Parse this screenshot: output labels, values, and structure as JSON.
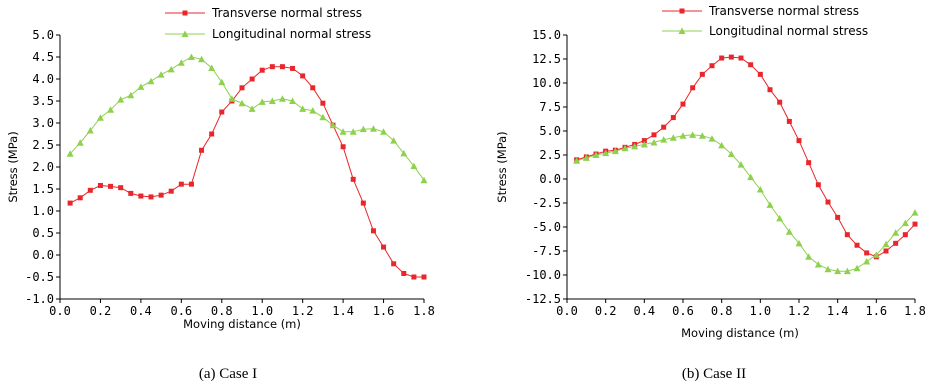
{
  "colors": {
    "transverse": "#e8262b",
    "longitudinal": "#8fd14f",
    "axis": "#000000"
  },
  "chart_data": [
    {
      "type": "line",
      "caption": "(a) Case I",
      "xlabel": "Moving distance (m)",
      "ylabel": "Stress (MPa)",
      "xlim": [
        0.0,
        1.8
      ],
      "ylim": [
        -1.0,
        5.0
      ],
      "xticks": [
        "0.0",
        "0.2",
        "0.4",
        "0.6",
        "0.8",
        "1.0",
        "1.2",
        "1.4",
        "1.6",
        "1.8"
      ],
      "yticks": [
        "-1.0",
        "-0.5",
        "0.0",
        "0.5",
        "1.0",
        "1.5",
        "2.0",
        "2.5",
        "3.0",
        "3.5",
        "4.0",
        "4.5",
        "5.0"
      ],
      "legend": "top",
      "series": [
        {
          "name": "Transverse normal stress",
          "marker": "square",
          "x": [
            0.05,
            0.1,
            0.15,
            0.2,
            0.25,
            0.3,
            0.35,
            0.4,
            0.45,
            0.5,
            0.55,
            0.6,
            0.65,
            0.7,
            0.75,
            0.8,
            0.85,
            0.9,
            0.95,
            1.0,
            1.05,
            1.1,
            1.15,
            1.2,
            1.25,
            1.3,
            1.35,
            1.4,
            1.45,
            1.5,
            1.55,
            1.6,
            1.65,
            1.7,
            1.75,
            1.8
          ],
          "values": [
            1.18,
            1.3,
            1.47,
            1.58,
            1.56,
            1.53,
            1.4,
            1.34,
            1.32,
            1.36,
            1.45,
            1.61,
            1.61,
            2.38,
            2.75,
            3.25,
            3.5,
            3.8,
            4.0,
            4.2,
            4.28,
            4.28,
            4.24,
            4.07,
            3.8,
            3.45,
            2.95,
            2.46,
            1.72,
            1.18,
            0.55,
            0.18,
            -0.2,
            -0.42,
            -0.5,
            -0.5
          ]
        },
        {
          "name": "Longitudinal normal stress",
          "marker": "triangle",
          "x": [
            0.05,
            0.1,
            0.15,
            0.2,
            0.25,
            0.3,
            0.35,
            0.4,
            0.45,
            0.5,
            0.55,
            0.6,
            0.65,
            0.7,
            0.75,
            0.8,
            0.85,
            0.9,
            0.95,
            1.0,
            1.05,
            1.1,
            1.15,
            1.2,
            1.25,
            1.3,
            1.35,
            1.4,
            1.45,
            1.5,
            1.55,
            1.6,
            1.65,
            1.7,
            1.75,
            1.8
          ],
          "values": [
            2.3,
            2.55,
            2.83,
            3.12,
            3.3,
            3.53,
            3.63,
            3.82,
            3.95,
            4.1,
            4.22,
            4.37,
            4.5,
            4.45,
            4.25,
            3.93,
            3.55,
            3.45,
            3.32,
            3.48,
            3.5,
            3.55,
            3.5,
            3.32,
            3.28,
            3.13,
            2.95,
            2.8,
            2.8,
            2.86,
            2.87,
            2.8,
            2.6,
            2.31,
            2.02,
            1.7
          ]
        }
      ]
    },
    {
      "type": "line",
      "caption": "(b) Case II",
      "xlabel": "Moving distance (m)",
      "ylabel": "Stress (MPa)",
      "xlim": [
        0.0,
        1.8
      ],
      "ylim": [
        -12.5,
        15.0
      ],
      "xticks": [
        "0.0",
        "0.2",
        "0.4",
        "0.6",
        "0.8",
        "1.0",
        "1.2",
        "1.4",
        "1.6",
        "1.8"
      ],
      "yticks": [
        "-12.5",
        "-10.0",
        "-7.5",
        "-5.0",
        "-2.5",
        "0.0",
        "2.5",
        "5.0",
        "7.5",
        "10.0",
        "12.5",
        "15.0"
      ],
      "legend": "top",
      "series": [
        {
          "name": "Transverse normal stress",
          "marker": "square",
          "x": [
            0.05,
            0.1,
            0.15,
            0.2,
            0.25,
            0.3,
            0.35,
            0.4,
            0.45,
            0.5,
            0.55,
            0.6,
            0.65,
            0.7,
            0.75,
            0.8,
            0.85,
            0.9,
            0.95,
            1.0,
            1.05,
            1.1,
            1.15,
            1.2,
            1.25,
            1.3,
            1.35,
            1.4,
            1.45,
            1.5,
            1.55,
            1.6,
            1.65,
            1.7,
            1.75,
            1.8
          ],
          "values": [
            2.0,
            2.3,
            2.6,
            2.9,
            3.0,
            3.3,
            3.6,
            4.0,
            4.6,
            5.4,
            6.4,
            7.8,
            9.5,
            10.9,
            11.8,
            12.6,
            12.7,
            12.6,
            11.9,
            10.9,
            9.3,
            8.0,
            6.0,
            4.0,
            1.7,
            -0.6,
            -2.4,
            -4.0,
            -5.8,
            -6.9,
            -7.7,
            -8.1,
            -7.5,
            -6.7,
            -5.8,
            -4.7
          ]
        },
        {
          "name": "Longitudinal normal stress",
          "marker": "triangle",
          "x": [
            0.05,
            0.1,
            0.15,
            0.2,
            0.25,
            0.3,
            0.35,
            0.4,
            0.45,
            0.5,
            0.55,
            0.6,
            0.65,
            0.7,
            0.75,
            0.8,
            0.85,
            0.9,
            0.95,
            1.0,
            1.05,
            1.1,
            1.15,
            1.2,
            1.25,
            1.3,
            1.35,
            1.4,
            1.45,
            1.5,
            1.55,
            1.6,
            1.65,
            1.7,
            1.75,
            1.8
          ],
          "values": [
            1.9,
            2.2,
            2.5,
            2.7,
            2.9,
            3.2,
            3.4,
            3.6,
            3.8,
            4.1,
            4.3,
            4.5,
            4.6,
            4.5,
            4.2,
            3.5,
            2.6,
            1.5,
            0.2,
            -1.1,
            -2.7,
            -4.1,
            -5.5,
            -6.7,
            -8.1,
            -8.9,
            -9.4,
            -9.6,
            -9.6,
            -9.3,
            -8.6,
            -7.9,
            -6.8,
            -5.6,
            -4.6,
            -3.5
          ]
        }
      ]
    }
  ]
}
